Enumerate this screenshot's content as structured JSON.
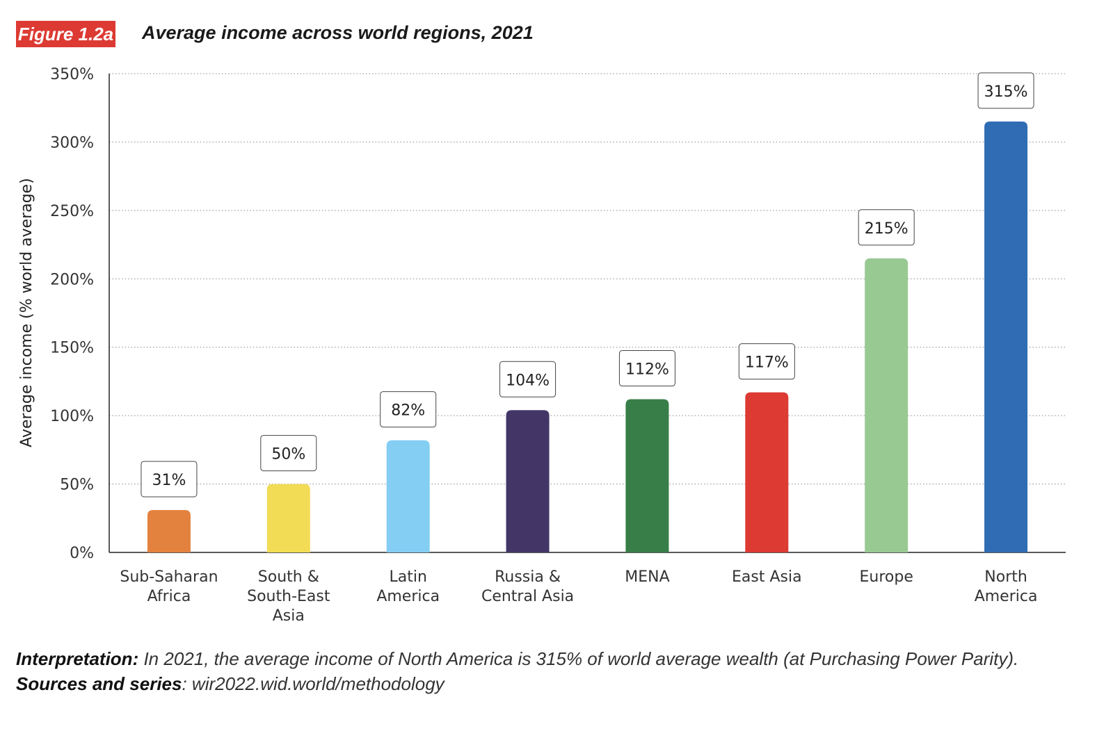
{
  "figure_label": "Figure 1.2a",
  "chart_data": {
    "type": "bar",
    "title": "Average income across world regions, 2021",
    "ylabel": "Average income (% world average)",
    "xlabel": "",
    "ylim": [
      0,
      350
    ],
    "yticks": [
      "0%",
      "50%",
      "100%",
      "150%",
      "200%",
      "250%",
      "300%",
      "350%"
    ],
    "grid": true,
    "categories": [
      [
        "Sub-Saharan",
        "Africa"
      ],
      [
        "South &",
        "South-East",
        "Asia"
      ],
      [
        "Latin",
        "America"
      ],
      [
        "Russia &",
        "Central Asia"
      ],
      [
        "MENA"
      ],
      [
        "East Asia"
      ],
      [
        "Europe"
      ],
      [
        "North",
        "America"
      ]
    ],
    "values": [
      31,
      50,
      82,
      104,
      112,
      117,
      215,
      315
    ],
    "data_labels": [
      "31%",
      "50%",
      "82%",
      "104%",
      "112%",
      "117%",
      "215%",
      "315%"
    ],
    "colors": [
      "#e3823e",
      "#f3dc55",
      "#84cdf3",
      "#433667",
      "#377e48",
      "#dc3a33",
      "#98c993",
      "#2f6cb3"
    ]
  },
  "note": {
    "interpretation_label": "Interpretation:",
    "interpretation_text": " In 2021, the average income of North America is 315% of world average wealth (at Purchasing Power Parity). ",
    "sources_label": "Sources and series",
    "sources_text": ": wir2022.wid.world/methodology"
  }
}
